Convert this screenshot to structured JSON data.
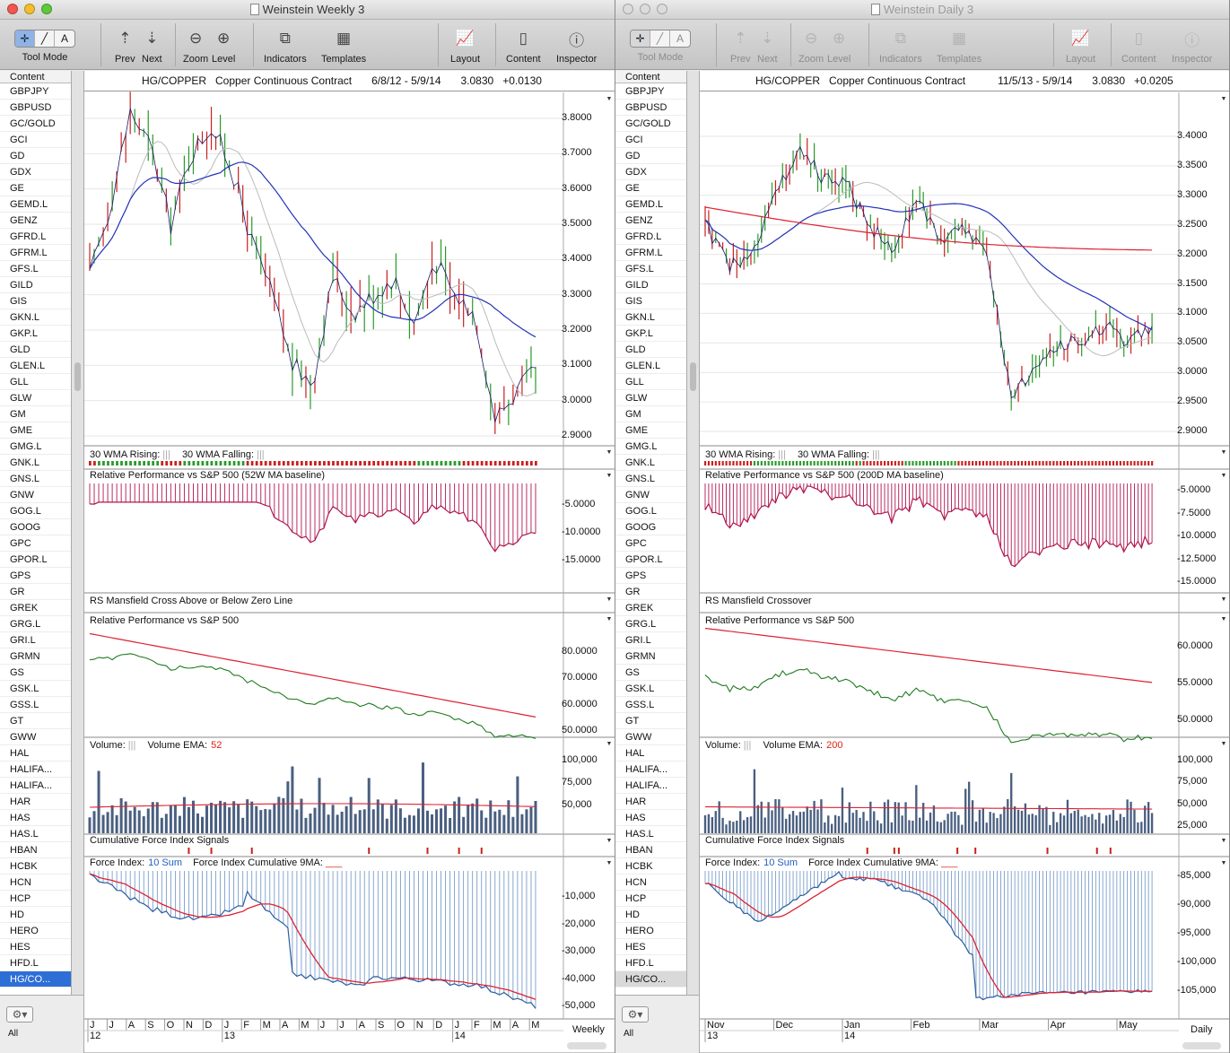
{
  "windows": [
    {
      "title": "Weinstein Weekly 3",
      "active": true,
      "toolbar": {
        "tool_mode_label": "Tool Mode",
        "prev_label": "Prev",
        "next_label": "Next",
        "zoom_label": "Zoom",
        "level_label": "Level",
        "indicators_label": "Indicators",
        "templates_label": "Templates",
        "layout_label": "Layout",
        "content_label": "Content",
        "inspector_label": "Inspector",
        "tool_mode_options": [
          "cursor-tool",
          "line-tool",
          "text-tool"
        ]
      },
      "sidebar": {
        "header": "Content",
        "footer_label": "All",
        "selected": "HG/CO..."
      },
      "chart": {
        "symbol": "HG/COPPER",
        "name": "Copper Continuous Contract",
        "range": "6/8/12 - 5/9/14",
        "last": "3.0830",
        "change": "+0.0130",
        "period": "Weekly",
        "panels": {
          "wma_rising": "30 WMA Rising:",
          "wma_falling": "30 WMA Falling:",
          "rel_perf_ma": "Relative Performance vs S&P 500 (52W MA baseline)",
          "rs_cross": "RS Mansfield Cross Above or Below Zero Line",
          "rel_perf": "Relative Performance vs S&P 500",
          "volume": "Volume:",
          "volume_ema": "Volume EMA:",
          "volume_ema_len": "52",
          "cfi_signals": "Cumulative Force Index Signals",
          "force_index": "Force Index:",
          "force_sum": "10 Sum",
          "force_cum": "Force Index Cumulative 9MA:"
        },
        "price_ticks": [
          "3.8000",
          "3.7000",
          "3.6000",
          "3.5000",
          "3.4000",
          "3.3000",
          "3.2000",
          "3.1000",
          "3.0000",
          "2.9000"
        ],
        "rp_ma_ticks": [
          "-5.0000",
          "-10.0000",
          "-15.0000"
        ],
        "rp_ticks": [
          "80.0000",
          "70.0000",
          "60.0000",
          "50.0000"
        ],
        "vol_ticks": [
          "100,000",
          "75,000",
          "50,000"
        ],
        "fi_ticks": [
          "-10,000",
          "-20,000",
          "-30,000",
          "-40,000",
          "-50,000"
        ],
        "x_months": [
          "J",
          "J",
          "A",
          "S",
          "O",
          "N",
          "D",
          "J",
          "F",
          "M",
          "A",
          "M",
          "J",
          "J",
          "A",
          "S",
          "O",
          "N",
          "D",
          "J",
          "F",
          "M",
          "A",
          "M"
        ],
        "x_years": [
          "12",
          "13",
          "14"
        ]
      }
    },
    {
      "title": "Weinstein Daily 3",
      "active": false,
      "toolbar": {
        "tool_mode_label": "Tool Mode",
        "prev_label": "Prev",
        "next_label": "Next",
        "zoom_label": "Zoom",
        "level_label": "Level",
        "indicators_label": "Indicators",
        "templates_label": "Templates",
        "layout_label": "Layout",
        "content_label": "Content",
        "inspector_label": "Inspector",
        "tool_mode_options": [
          "cursor-tool",
          "line-tool",
          "text-tool"
        ]
      },
      "sidebar": {
        "header": "Content",
        "footer_label": "All",
        "selected": "HG/CO..."
      },
      "chart": {
        "symbol": "HG/COPPER",
        "name": "Copper Continuous Contract",
        "range": "11/5/13 - 5/9/14",
        "last": "3.0830",
        "change": "+0.0205",
        "period": "Daily",
        "panels": {
          "wma_rising": "30 WMA Rising:",
          "wma_falling": "30 WMA Falling:",
          "rel_perf_ma": "Relative Performance vs S&P 500 (200D MA baseline)",
          "rs_cross": "RS Mansfield Crossover",
          "rel_perf": "Relative Performance vs S&P 500",
          "volume": "Volume:",
          "volume_ema": "Volume EMA:",
          "volume_ema_len": "200",
          "cfi_signals": "Cumulative Force Index Signals",
          "force_index": "Force Index:",
          "force_sum": "10 Sum",
          "force_cum": "Force Index Cumulative 9MA:"
        },
        "price_ticks": [
          "3.4000",
          "3.3500",
          "3.3000",
          "3.2500",
          "3.2000",
          "3.1500",
          "3.1000",
          "3.0500",
          "3.0000",
          "2.9500",
          "2.9000"
        ],
        "rp_ma_ticks": [
          "-5.0000",
          "-7.5000",
          "-10.0000",
          "-12.5000",
          "-15.0000"
        ],
        "rp_ticks": [
          "60.0000",
          "55.0000",
          "50.0000"
        ],
        "vol_ticks": [
          "100,000",
          "75,000",
          "50,000",
          "25,000"
        ],
        "fi_ticks": [
          "-85,000",
          "-90,000",
          "-95,000",
          "-100,000",
          "-105,000"
        ],
        "x_months": [
          "Nov",
          "Dec",
          "Jan",
          "Feb",
          "Mar",
          "Apr",
          "May"
        ],
        "x_years": [
          "13",
          "14"
        ]
      }
    }
  ],
  "symbols": [
    "GBPJPY",
    "GBPUSD",
    "GC/GOLD",
    "GCI",
    "GD",
    "GDX",
    "GE",
    "GEMD.L",
    "GENZ",
    "GFRD.L",
    "GFRM.L",
    "GFS.L",
    "GILD",
    "GIS",
    "GKN.L",
    "GKP.L",
    "GLD",
    "GLEN.L",
    "GLL",
    "GLW",
    "GM",
    "GME",
    "GMG.L",
    "GNK.L",
    "GNS.L",
    "GNW",
    "GOG.L",
    "GOOG",
    "GPC",
    "GPOR.L",
    "GPS",
    "GR",
    "GREK",
    "GRG.L",
    "GRI.L",
    "GRMN",
    "GS",
    "GSK.L",
    "GSS.L",
    "GT",
    "GWW",
    "HAL",
    "HALIFA...",
    "HALIFA...",
    "HAR",
    "HAS",
    "HAS.L",
    "HBAN",
    "HCBK",
    "HCN",
    "HCP",
    "HD",
    "HERO",
    "HES",
    "HFD.L",
    "HG/CO..."
  ],
  "colors": {
    "price_up": "#2a9a2a",
    "price_down": "#c82020",
    "ma_blue": "#2233bb",
    "ma_gray": "#bbbbbb",
    "ma_red": "#dd2233",
    "rs_magenta": "#b0154f",
    "selection": "#2d6fd6"
  }
}
